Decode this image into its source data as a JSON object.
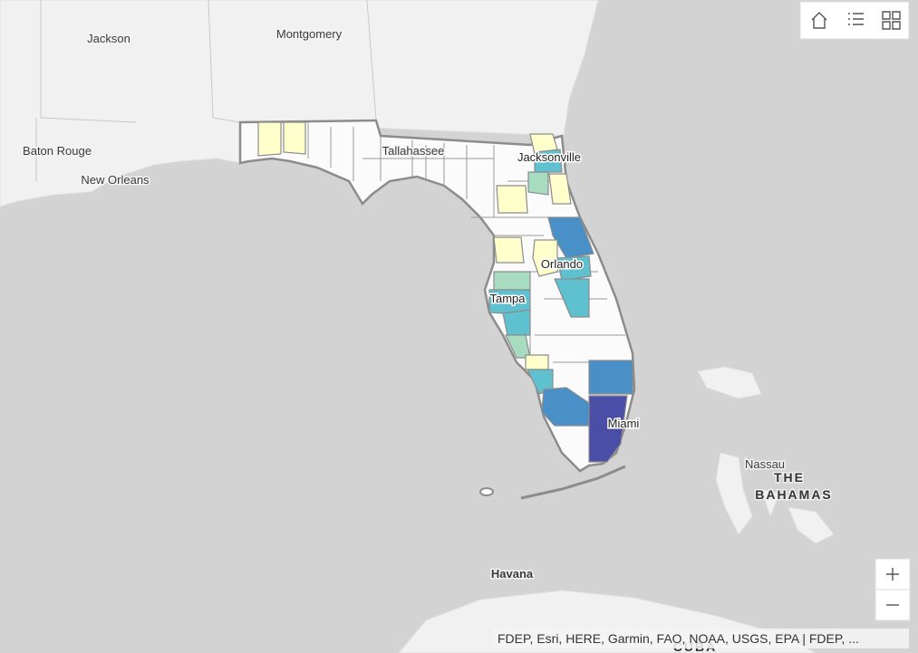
{
  "map": {
    "labels": [
      "Jackson",
      "Montgomery",
      "Baton Rouge",
      "New Orleans",
      "Tallahassee",
      "Jacksonville",
      "Orlando",
      "Tampa",
      "Miami",
      "Nassau",
      "THE",
      "BAHAMAS",
      "Havana",
      "CUBA"
    ],
    "attribution": "FDEP, Esri, HERE, Garmin, FAO, NOAA, USGS, EPA | FDEP, ..."
  }
}
